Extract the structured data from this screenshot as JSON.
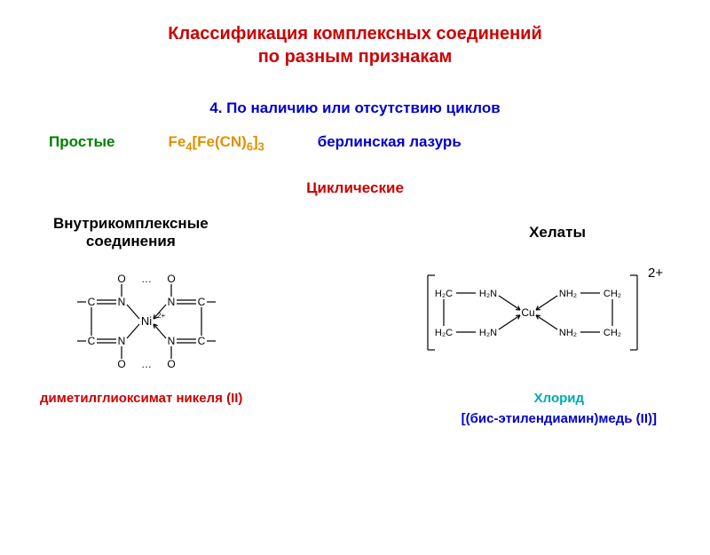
{
  "title_line1": "Классификация комплексных соединений",
  "title_line2": "по разным признакам",
  "title_color": "#cc0000",
  "subtitle": "4. По наличию или отсутствию циклов",
  "subtitle_color": "#0000cc",
  "simple_label": "Простые",
  "simple_color": "#008000",
  "formula_html": "Fe<sub>4</sub>[Fe(CN)<sub>6</sub>]<sub>3</sub>",
  "formula_color": "#e09000",
  "berlin": "берлинская лазурь",
  "berlin_color": "#0000cc",
  "cyclic": "Циклические",
  "cyclic_color": "#cc0000",
  "inner_line1": "Внутрикомплексные",
  "inner_line2": "соединения",
  "inner_color": "#000000",
  "chelates": "Хелаты",
  "chelates_color": "#000000",
  "ni_struct": {
    "metal": "Ni",
    "charge": "2+",
    "O": "O",
    "C": "C",
    "N": "N",
    "dots": "…",
    "stroke": "#000000",
    "text_color": "#000000",
    "font_size": 12
  },
  "cu_struct": {
    "metal": "Cu",
    "charge": "2+",
    "H2C": "H₂C",
    "H2N": "H₂N",
    "NH2": "NH₂",
    "CH2": "CH₂",
    "stroke": "#000000",
    "text_color": "#000000",
    "font_size": 11
  },
  "ni_name": "диметилглиоксимат никеля (II)",
  "ni_name_color": "#cc0000",
  "chloride": "Хлорид",
  "chloride_color": "#00aaaa",
  "cu_name": "[(бис-этилендиамин)медь (II)]",
  "cu_name_color": "#0000cc"
}
